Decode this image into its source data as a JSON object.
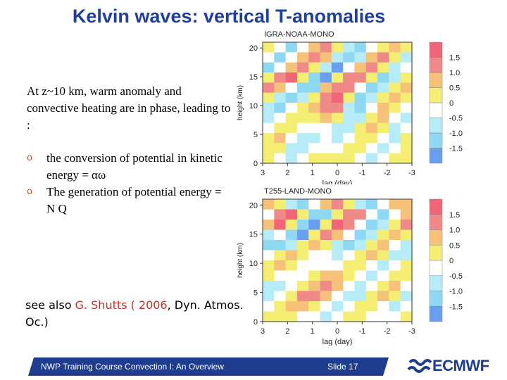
{
  "slide": {
    "title": "Kelvin waves: vertical T-anomalies",
    "intro": "At z~10 km, warm anomaly and convective heating  are in phase, leading to :",
    "bullets": [
      "the conversion of potential in kinetic energy = αω",
      "The generation of potential energy  =   N Q"
    ],
    "see_also": {
      "prefix": "see also ",
      "author": "G. Shutts ( 2006",
      "suffix": ", Dyn. Atmos. Oc.)"
    },
    "footer_course": "NWP Training Course Convection I: An Overview",
    "footer_slide": "Slide 17",
    "logo_text": "ECMWF"
  },
  "colors": {
    "title": "#1f3f9a",
    "footer_bar": "#1e3d8f",
    "bullet_mark": "#e0402b",
    "citation": "#c0302a",
    "logo": "#1e3d8f",
    "levels": [
      "#6a9ef0",
      "#8fd8f4",
      "#b5ecf8",
      "#ffffff",
      "#f4ef72",
      "#f6c27a",
      "#f08a88",
      "#f06578"
    ]
  },
  "icons": {
    "bullet": "o",
    "logo": "ecmwf-wave-icon"
  },
  "chart_data": [
    {
      "type": "heatmap",
      "title": "IGRA-NOAA-MONO",
      "xlabel": "lag (day)",
      "ylabel": "height (km)",
      "x_ticks": [
        "3",
        "2",
        "1",
        "0",
        "-1",
        "-2",
        "-3"
      ],
      "y_ticks": [
        "0",
        "5",
        "10",
        "15",
        "20"
      ],
      "xlim": [
        3,
        -3
      ],
      "ylim": [
        0,
        21
      ],
      "colorbar_ticks": [
        "1.5",
        "1.0",
        "0.5",
        "0",
        "-0.5",
        "-1.0",
        "-1.5"
      ],
      "colorbar_levels": [
        -1.5,
        -1.0,
        -0.5,
        0,
        0.5,
        1.0,
        1.5
      ],
      "z_rows_top_to_bottom": [
        [
          0.3,
          -0.4,
          -1.1,
          -0.3,
          0.6,
          1.2,
          0.4,
          -0.6,
          -1.2,
          -0.3,
          0.4,
          0.8,
          0.2
        ],
        [
          -0.4,
          -1.0,
          -0.4,
          0.6,
          1.4,
          0.6,
          -0.6,
          -1.4,
          -0.5,
          0.6,
          1.2,
          0.3,
          -0.5
        ],
        [
          -1.0,
          -0.3,
          0.8,
          1.5,
          0.4,
          -0.9,
          -1.6,
          -0.3,
          0.9,
          1.4,
          0.1,
          -0.9,
          -0.4
        ],
        [
          0.5,
          1.2,
          1.6,
          0.2,
          -1.3,
          -1.6,
          0.2,
          1.2,
          1.5,
          0.2,
          -1.1,
          -0.5,
          0.3
        ],
        [
          1.2,
          0.8,
          -0.4,
          -1.4,
          -1.1,
          0.6,
          1.5,
          1.3,
          -0.2,
          -1.2,
          -0.6,
          0.4,
          1.0
        ],
        [
          0.4,
          -0.5,
          -1.2,
          -0.8,
          0.4,
          1.2,
          1.7,
          0.4,
          -1.2,
          -0.8,
          0.2,
          0.9,
          0.5
        ],
        [
          -0.7,
          -1.0,
          -0.3,
          0.3,
          0.8,
          1.4,
          1.1,
          -0.5,
          -1.3,
          -0.2,
          0.6,
          0.3,
          -0.4
        ],
        [
          -0.8,
          -0.2,
          0.3,
          0.2,
          0.2,
          0.7,
          0.3,
          -0.8,
          -0.6,
          0.3,
          0.6,
          -0.2,
          -0.7
        ],
        [
          -0.2,
          0.4,
          0.3,
          -0.3,
          -0.4,
          0.0,
          -0.5,
          -0.7,
          0.2,
          0.6,
          0.1,
          -0.6,
          -0.4
        ],
        [
          0.3,
          0.6,
          -0.2,
          -0.6,
          -0.6,
          -0.3,
          -0.8,
          -0.2,
          0.5,
          0.3,
          -0.4,
          -0.6,
          0.1
        ],
        [
          0.5,
          0.2,
          -0.5,
          -0.8,
          -0.4,
          -0.2,
          -0.4,
          0.3,
          0.4,
          -0.2,
          -0.6,
          -0.2,
          0.4
        ],
        [
          0.2,
          -0.3,
          -0.6,
          -0.3,
          0.2,
          0.3,
          0.2,
          0.4,
          0.0,
          -0.5,
          -0.3,
          0.3,
          0.5
        ]
      ]
    },
    {
      "type": "heatmap",
      "title": "T255-LAND-MONO",
      "xlabel": "lag (day)",
      "ylabel": "height (km)",
      "x_ticks": [
        "3",
        "2",
        "1",
        "0",
        "-1",
        "-2",
        "-3"
      ],
      "y_ticks": [
        "0",
        "5",
        "10",
        "15",
        "20"
      ],
      "xlim": [
        3,
        -3
      ],
      "ylim": [
        0,
        21
      ],
      "colorbar_ticks": [
        "1.5",
        "1.0",
        "0.5",
        "0",
        "-0.5",
        "-1.0",
        "-1.5"
      ],
      "colorbar_levels": [
        -1.5,
        -1.0,
        -0.5,
        0,
        0.5,
        1.0,
        1.5
      ],
      "z_rows_top_to_bottom": [
        [
          0.8,
          0.2,
          -0.6,
          -1.2,
          -0.4,
          0.6,
          1.2,
          0.5,
          -0.6,
          -1.1,
          -0.3,
          0.6,
          1.0
        ],
        [
          -0.3,
          1.3,
          1.6,
          0.4,
          -1.0,
          -1.4,
          0.1,
          1.4,
          1.2,
          -0.3,
          -1.2,
          -0.4,
          0.6
        ],
        [
          1.0,
          1.6,
          0.3,
          -1.4,
          -1.6,
          0.2,
          1.6,
          1.4,
          -0.4,
          -1.4,
          -0.6,
          0.5,
          1.2
        ],
        [
          -0.6,
          -0.2,
          -1.3,
          -1.5,
          0.1,
          1.3,
          1.0,
          -0.3,
          -1.3,
          -0.9,
          0.3,
          1.0,
          0.4
        ],
        [
          -1.3,
          -1.0,
          -0.5,
          0.4,
          0.9,
          0.5,
          -0.6,
          -1.4,
          -0.7,
          0.4,
          0.8,
          -0.2,
          -0.9
        ],
        [
          -0.4,
          0.3,
          0.6,
          0.5,
          0.0,
          -0.4,
          -0.7,
          -0.4,
          0.3,
          0.6,
          0.1,
          -0.6,
          -0.5
        ],
        [
          0.5,
          0.6,
          0.2,
          -0.2,
          -0.4,
          -0.3,
          0.0,
          0.4,
          0.5,
          0.0,
          -0.5,
          -0.3,
          0.3
        ],
        [
          0.3,
          0.0,
          -0.4,
          -0.3,
          0.1,
          0.6,
          0.8,
          0.3,
          -0.3,
          -0.6,
          -0.2,
          0.4,
          0.5
        ],
        [
          -0.5,
          -0.6,
          -0.2,
          0.4,
          0.9,
          1.3,
          0.8,
          -0.2,
          -0.8,
          -0.4,
          0.4,
          0.6,
          0.0
        ],
        [
          -0.8,
          -0.4,
          0.5,
          1.1,
          1.5,
          0.9,
          -0.2,
          -0.9,
          -0.5,
          0.3,
          0.6,
          0.1,
          -0.6
        ],
        [
          -0.3,
          0.4,
          0.9,
          1.0,
          0.4,
          -0.3,
          -0.8,
          -0.4,
          0.3,
          0.5,
          0.0,
          -0.5,
          -0.4
        ],
        [
          0.3,
          0.5,
          0.3,
          -0.1,
          -0.4,
          -0.5,
          -0.2,
          0.2,
          0.3,
          0.0,
          -0.3,
          -0.2,
          0.2
        ]
      ]
    }
  ]
}
